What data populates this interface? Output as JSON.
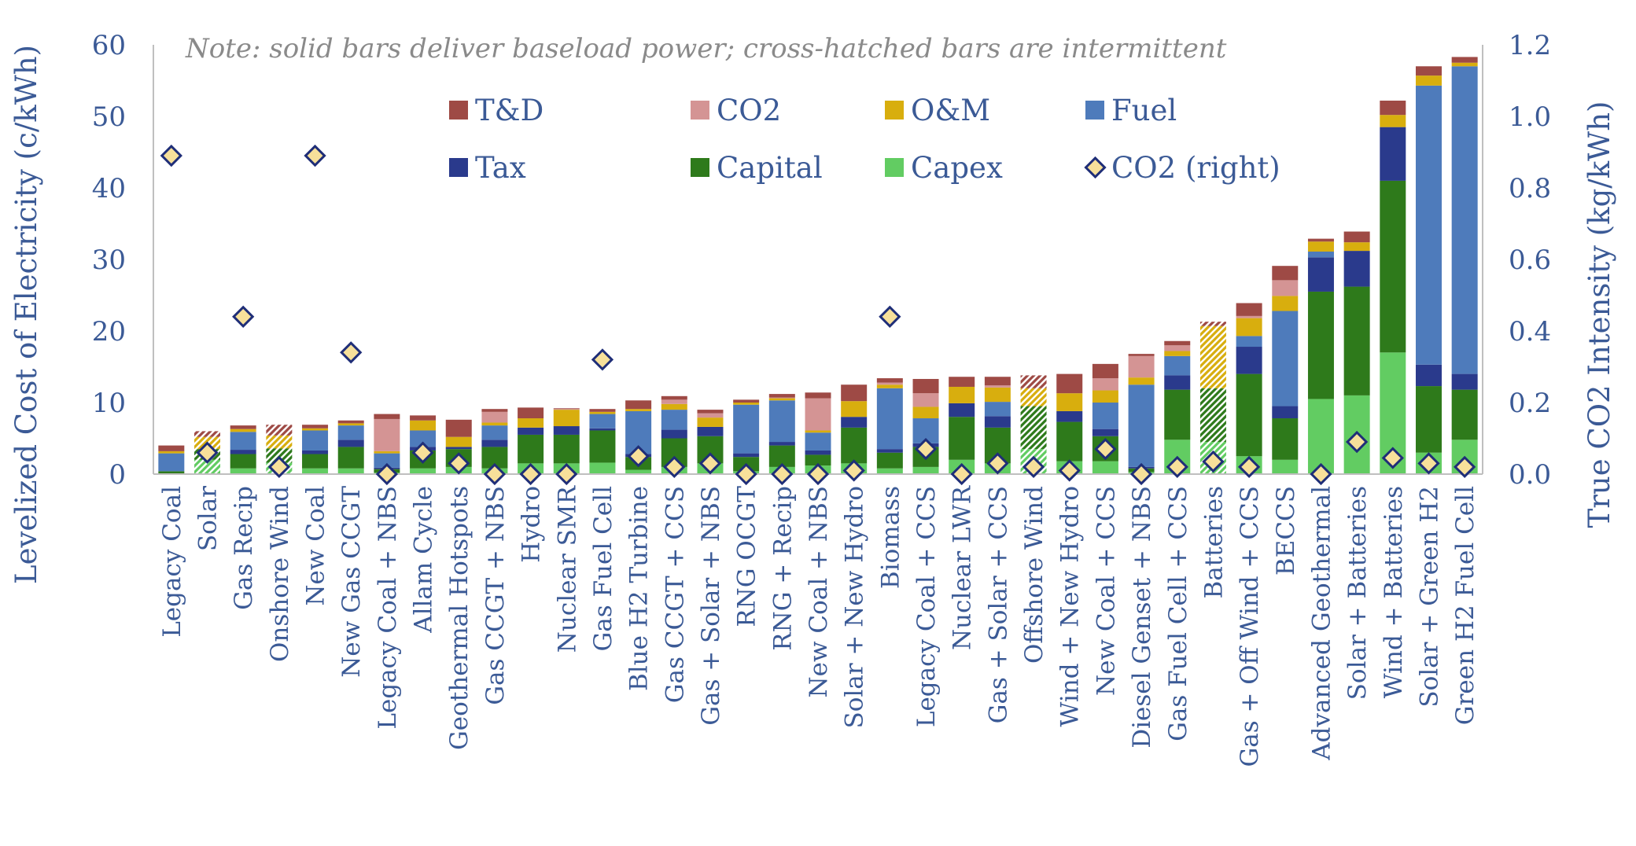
{
  "colors": {
    "td": "#9e4a45",
    "co2": "#d49494",
    "om": "#d8ae0e",
    "fuel": "#4e7bbb",
    "tax": "#2a3a8c",
    "capital": "#2e7a1b",
    "capex": "#62cc62",
    "marker_fill": "#f7e09a",
    "marker_stroke": "#1f2e78",
    "axis_text": "#3b5a96"
  },
  "chart_data": {
    "type": "bar",
    "stacked": true,
    "note": "Note: solid bars deliver baseload power; cross-hatched bars are intermittent",
    "ylabel": "Levelized Cost of Electricity (c/kWh)",
    "y2label": "True CO2 Intensity (kg/kWh)",
    "ylim": [
      0,
      60
    ],
    "y2lim": [
      0,
      1.2
    ],
    "yticks": [
      "0",
      "10",
      "20",
      "30",
      "40",
      "50",
      "60"
    ],
    "y2ticks": [
      "0.0",
      "0.2",
      "0.4",
      "0.6",
      "0.8",
      "1.0",
      "1.2"
    ],
    "grid": false,
    "legend_position": "top-center",
    "legend": [
      {
        "key": "td",
        "label": "T&D"
      },
      {
        "key": "co2",
        "label": "CO2"
      },
      {
        "key": "om",
        "label": "O&M"
      },
      {
        "key": "fuel",
        "label": "Fuel"
      },
      {
        "key": "tax",
        "label": "Tax"
      },
      {
        "key": "capital",
        "label": "Capital"
      },
      {
        "key": "capex",
        "label": "Capex"
      },
      {
        "key": "co2_right",
        "label": "CO2 (right)"
      }
    ],
    "stack_order": [
      "capex",
      "capital",
      "tax",
      "fuel",
      "om",
      "co2",
      "td"
    ],
    "categories": [
      "Legacy Coal",
      "Solar",
      "Gas Recip",
      "Onshore Wind",
      "New Coal",
      "New Gas CCGT",
      "Legacy Coal + NBS",
      "Allam Cycle",
      "Geothermal Hotspots",
      "Gas CCGT + NBS",
      "Hydro",
      "Nuclear SMR",
      "Gas Fuel Cell",
      "Blue H2 Turbine",
      "Gas CCGT + CCS",
      "Gas + Solar + NBS",
      "RNG OCGT",
      "RNG + Recip",
      "New Coal + NBS",
      "Solar + New Hydro",
      "Biomass",
      "Legacy Coal + CCS",
      "Nuclear LWR",
      "Gas + Solar + CCS",
      "Offshore Wind",
      "Wind + New Hydro",
      "New Coal + CCS",
      "Diesel Genset + NBS",
      "Gas Fuel Cell + CCS",
      "Batteries",
      "Gas + Off Wind + CCS",
      "BECCS",
      "Advanced Geothermal",
      "Solar + Batteries",
      "Wind + Batteries",
      "Solar + Green H2",
      "Green H2 Fuel Cell"
    ],
    "intermittent": [
      "Solar",
      "Onshore Wind",
      "Offshore Wind",
      "Batteries"
    ],
    "series": [
      {
        "key": "capex",
        "values": [
          0.1,
          2.0,
          0.8,
          1.6,
          0.8,
          0.8,
          0.2,
          0.8,
          1.0,
          0.8,
          1.5,
          1.5,
          1.6,
          0.6,
          1.0,
          1.5,
          0.4,
          1.0,
          1.2,
          1.5,
          0.8,
          1.0,
          2.0,
          1.5,
          3.5,
          1.8,
          1.8,
          0.3,
          4.8,
          4.5,
          2.5,
          2.0,
          10.5,
          11.0,
          17.0,
          3.0,
          4.8
        ]
      },
      {
        "key": "capital",
        "values": [
          0.3,
          1.5,
          2.0,
          2.0,
          2.0,
          3.0,
          0.5,
          2.5,
          2.5,
          3.0,
          4.0,
          4.0,
          4.5,
          1.8,
          4.0,
          3.8,
          2.0,
          3.0,
          1.5,
          5.0,
          2.2,
          2.8,
          6.0,
          5.0,
          6.0,
          5.5,
          3.5,
          0.5,
          7.0,
          7.5,
          11.5,
          5.8,
          15.0,
          15.2,
          24.0,
          9.3,
          7.0
        ]
      },
      {
        "key": "tax",
        "values": [
          0,
          0,
          0.6,
          0,
          0.5,
          1.0,
          0.2,
          0.5,
          0.3,
          1.0,
          1.0,
          1.2,
          0.3,
          0.4,
          1.2,
          1.3,
          0.5,
          0.5,
          0.6,
          1.5,
          0.5,
          0.5,
          1.9,
          1.6,
          0,
          1.5,
          1.0,
          0.2,
          2.0,
          0,
          3.8,
          1.7,
          4.8,
          5.0,
          7.5,
          3.0,
          2.2
        ]
      },
      {
        "key": "fuel",
        "values": [
          2.5,
          0,
          2.5,
          0,
          2.8,
          2.0,
          2.0,
          2.3,
          0,
          2.0,
          0,
          0,
          2.0,
          6.0,
          2.8,
          0,
          6.8,
          5.8,
          2.5,
          0,
          8.5,
          3.5,
          0,
          2.0,
          0,
          0,
          3.7,
          11.5,
          2.7,
          0,
          1.5,
          13.3,
          0.8,
          0,
          0,
          39.0,
          43.0
        ]
      },
      {
        "key": "om",
        "values": [
          0.3,
          1.7,
          0.4,
          1.8,
          0.3,
          0.3,
          0.3,
          1.4,
          1.4,
          0.4,
          1.3,
          2.3,
          0.3,
          0.3,
          0.8,
          1.3,
          0.3,
          0.3,
          0.3,
          2.2,
          0.5,
          1.6,
          2.3,
          2.0,
          2.5,
          2.5,
          1.7,
          1.0,
          0.7,
          8.7,
          2.5,
          2.1,
          1.4,
          1.2,
          1.7,
          1.4,
          0.5
        ]
      },
      {
        "key": "co2",
        "values": [
          0,
          0,
          0,
          0,
          0,
          0,
          4.5,
          0,
          0,
          1.5,
          0,
          0.1,
          0,
          0,
          0.6,
          0.6,
          0,
          0.1,
          4.5,
          0,
          0.3,
          1.9,
          0,
          0.3,
          0,
          0,
          1.7,
          3.0,
          0.8,
          0,
          0.3,
          2.2,
          0,
          0,
          0,
          0,
          0
        ]
      },
      {
        "key": "td",
        "values": [
          0.8,
          0.8,
          0.5,
          1.5,
          0.5,
          0.4,
          0.7,
          0.7,
          2.4,
          0.4,
          1.5,
          0.1,
          0.4,
          1.2,
          0.5,
          0.5,
          0.4,
          0.5,
          0.8,
          2.3,
          0.6,
          2.0,
          1.4,
          1.2,
          1.8,
          2.7,
          2.0,
          0.3,
          0.6,
          0.6,
          1.8,
          2.0,
          0.4,
          1.5,
          2.0,
          1.3,
          0.8
        ]
      }
    ],
    "co2_right": [
      0.89,
      0.06,
      0.44,
      0.02,
      0.89,
      0.34,
      0.0,
      0.06,
      0.03,
      0.0,
      0.0,
      0.0,
      0.32,
      0.05,
      0.02,
      0.03,
      0.0,
      0.0,
      0.0,
      0.01,
      0.44,
      0.07,
      0.0,
      0.03,
      0.02,
      0.01,
      0.07,
      0.0,
      0.02,
      0.035,
      0.02,
      null,
      0.0,
      0.09,
      0.045,
      0.03,
      0.02
    ]
  }
}
